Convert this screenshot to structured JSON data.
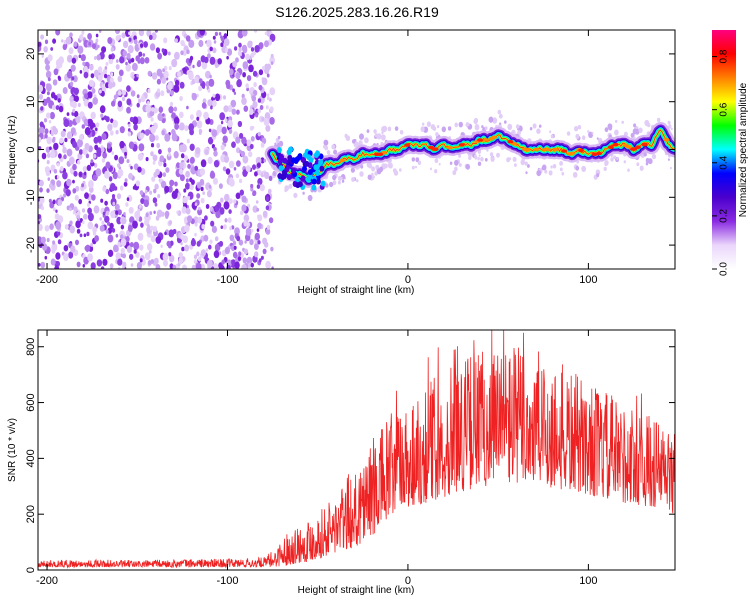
{
  "figure": {
    "title": "S126.2025.283.16.26.R19"
  },
  "chart_data": [
    {
      "type": "heatmap",
      "title": "S126.2025.283.16.26.R19",
      "xlabel": "Height of straight line (km)",
      "ylabel": "Frequency (Hz)",
      "xlim": [
        -205,
        148
      ],
      "ylim": [
        -25,
        25
      ],
      "x_ticks": [
        -200,
        -100,
        0,
        100
      ],
      "y_ticks": [
        -20,
        -10,
        0,
        10,
        20
      ],
      "x_tick_labels": [
        "-200",
        "-100",
        "0",
        "100"
      ],
      "y_tick_labels": [
        "-20",
        "-10",
        "0",
        "10",
        "20"
      ],
      "noise_region_x": [
        -205,
        -75
      ],
      "signal_onset_x": -75,
      "ridge": {
        "x": [
          -75,
          -70,
          -65,
          -60,
          -55,
          -50,
          -45,
          -40,
          -35,
          -30,
          -25,
          -20,
          -15,
          -10,
          -5,
          0,
          5,
          10,
          15,
          20,
          25,
          30,
          35,
          40,
          45,
          50,
          55,
          60,
          65,
          70,
          75,
          80,
          85,
          90,
          95,
          100,
          105,
          110,
          115,
          120,
          125,
          130,
          135,
          140,
          145,
          148
        ],
        "freq_hz": [
          -1,
          -3,
          -5,
          -5,
          -6,
          -5,
          -3,
          -3,
          -2,
          -2,
          -1,
          -1,
          -1,
          0,
          0,
          1,
          1,
          1,
          0,
          1,
          0,
          1,
          1,
          2,
          2,
          3,
          2,
          1,
          0,
          0,
          0,
          0,
          0,
          -1,
          0,
          -1,
          -1,
          0,
          1,
          1,
          0,
          1,
          1,
          4,
          1,
          0
        ]
      },
      "colorbar": {
        "label": "Normalized spectral amplitude",
        "range": [
          0.0,
          0.9
        ],
        "ticks": [
          0.0,
          0.2,
          0.4,
          0.6,
          0.8
        ],
        "tick_labels": [
          "0.0",
          "0.2",
          "0.4",
          "0.6",
          "0.8"
        ],
        "colors": [
          "#ffffff",
          "#ead6fb",
          "#8a2be2",
          "#4b00cc",
          "#0000ff",
          "#00ffff",
          "#00ff00",
          "#ffff00",
          "#ff8000",
          "#ff0000",
          "#ff0080"
        ]
      }
    },
    {
      "type": "line",
      "xlabel": "Height of straight line (km)",
      "ylabel": "SNR (10 * v/v)",
      "xlim": [
        -205,
        148
      ],
      "ylim": [
        0,
        860
      ],
      "x_ticks": [
        -200,
        -100,
        0,
        100
      ],
      "y_ticks": [
        0,
        200,
        400,
        600,
        800
      ],
      "x_tick_labels": [
        "-200",
        "-100",
        "0",
        "100"
      ],
      "y_tick_labels": [
        "0",
        "200",
        "400",
        "600",
        "800"
      ],
      "series": [
        {
          "name": "SNR",
          "color": "#ee2222",
          "envelope": {
            "x": [
              -205,
              -180,
              -150,
              -120,
              -100,
              -80,
              -75,
              -70,
              -65,
              -60,
              -55,
              -50,
              -45,
              -40,
              -35,
              -30,
              -25,
              -20,
              -15,
              -10,
              -5,
              0,
              10,
              20,
              30,
              40,
              50,
              60,
              70,
              80,
              90,
              100,
              110,
              120,
              130,
              140,
              148
            ],
            "low": [
              10,
              10,
              10,
              10,
              10,
              10,
              10,
              15,
              20,
              25,
              30,
              40,
              50,
              60,
              70,
              80,
              100,
              120,
              150,
              180,
              200,
              220,
              240,
              260,
              280,
              300,
              300,
              310,
              300,
              290,
              280,
              270,
              250,
              240,
              230,
              220,
              200
            ],
            "high": [
              35,
              38,
              35,
              40,
              40,
              45,
              70,
              110,
              150,
              170,
              190,
              210,
              240,
              280,
              320,
              380,
              430,
              470,
              520,
              560,
              600,
              620,
              680,
              730,
              770,
              800,
              820,
              820,
              800,
              760,
              720,
              680,
              640,
              600,
              570,
              540,
              500
            ]
          },
          "peak_value": 860
        }
      ]
    }
  ]
}
